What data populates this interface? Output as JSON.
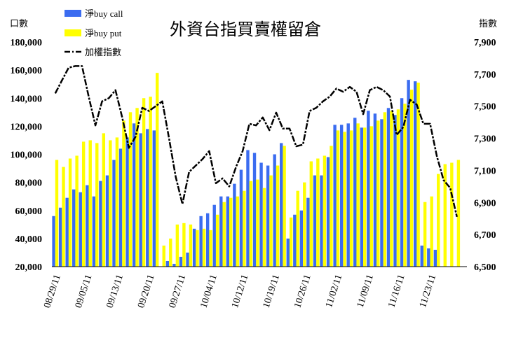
{
  "chart_data": {
    "type": "bar-line-combo",
    "title": "外資台指買賣權留倉",
    "y_left_label": "口數",
    "y_right_label": "指數",
    "y_left_range": [
      20000,
      180000
    ],
    "y_left_ticks": [
      "180,000",
      "160,000",
      "140,000",
      "120,000",
      "100,000",
      "80,000",
      "60,000",
      "40,000",
      "20,000"
    ],
    "y_right_range": [
      6500,
      7900
    ],
    "y_right_ticks": [
      "7,900",
      "7,700",
      "7,500",
      "7,300",
      "7,100",
      "6,900",
      "6,700",
      "6,500"
    ],
    "x_tick_labels": [
      "08/29/11",
      "09/05/11",
      "09/13/11",
      "09/20/11",
      "09/27/11",
      "10/04/11",
      "10/12/11",
      "10/19/11",
      "10/26/11",
      "11/02/11",
      "11/09/11",
      "11/16/11",
      "11/23/11"
    ],
    "legend": [
      {
        "label": "淨buy call",
        "color": "#3b6cf0",
        "kind": "bar"
      },
      {
        "label": "淨buy put",
        "color": "#ffff00",
        "kind": "bar"
      },
      {
        "label": "加權指數",
        "color": "#000000",
        "kind": "line"
      }
    ],
    "series": [
      {
        "name": "淨buy call",
        "values": [
          56000,
          62000,
          69000,
          75000,
          73000,
          78000,
          70000,
          81000,
          85000,
          96000,
          104000,
          112000,
          122000,
          115000,
          118000,
          117000,
          null,
          24000,
          22000,
          27000,
          30000,
          47000,
          56000,
          58000,
          64000,
          70000,
          70000,
          79000,
          89000,
          103000,
          101000,
          94000,
          92000,
          100000,
          108000,
          40000,
          57000,
          60000,
          69000,
          85000,
          85000,
          98000,
          121000,
          121000,
          122000,
          126000,
          119000,
          131000,
          129000,
          125000,
          133000,
          128000,
          140000,
          153000,
          152000,
          35000,
          33000,
          32000,
          null,
          null,
          null,
          null
        ]
      },
      {
        "name": "淨buy put",
        "values": [
          96000,
          91000,
          97000,
          99000,
          109000,
          110000,
          108000,
          115000,
          110000,
          112000,
          124000,
          130000,
          133000,
          140000,
          141000,
          158000,
          35000,
          40000,
          50000,
          51000,
          50000,
          46000,
          47000,
          46000,
          57000,
          66000,
          69000,
          70000,
          74000,
          81000,
          82000,
          76000,
          85000,
          92000,
          106000,
          55000,
          74000,
          80000,
          95000,
          97000,
          99000,
          106000,
          117000,
          116000,
          117000,
          122000,
          119000,
          120000,
          124000,
          130000,
          131000,
          132000,
          136000,
          146000,
          151000,
          66000,
          70000,
          86000,
          93000,
          94000,
          96000,
          null
        ]
      },
      {
        "name": "加權指數",
        "values": [
          7580,
          7660,
          7740,
          7750,
          7750,
          7560,
          7380,
          7530,
          7550,
          7600,
          7430,
          7240,
          7310,
          7490,
          7470,
          7500,
          7530,
          7300,
          7060,
          6890,
          7090,
          7130,
          7170,
          7220,
          7020,
          7050,
          7000,
          7120,
          7220,
          7390,
          7380,
          7430,
          7350,
          7460,
          7360,
          7360,
          7250,
          7260,
          7470,
          7490,
          7530,
          7560,
          7610,
          7590,
          7620,
          7590,
          7450,
          7600,
          7620,
          7600,
          7560,
          7320,
          7370,
          7540,
          7510,
          7390,
          7390,
          7190,
          7040,
          6990,
          6810,
          null
        ]
      }
    ]
  }
}
